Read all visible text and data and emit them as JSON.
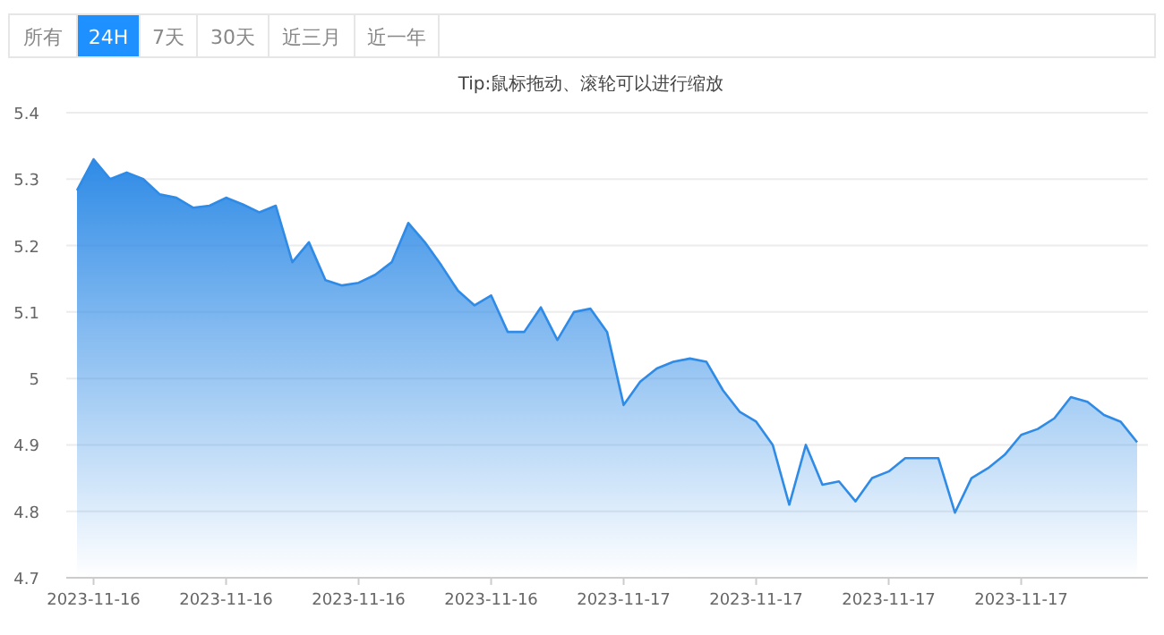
{
  "chart_data": {
    "type": "area",
    "annotations": [
      "所有",
      "24H",
      "7天",
      "30天",
      "近三月",
      "近一年",
      "Tip:鼠标拖动、滚轮可以进行缩放"
    ],
    "categories": [
      null,
      "2023-11-16",
      null,
      null,
      null,
      null,
      null,
      null,
      null,
      "2023-11-16",
      null,
      null,
      null,
      null,
      null,
      null,
      null,
      "2023-11-16",
      null,
      null,
      null,
      null,
      null,
      null,
      null,
      "2023-11-16",
      null,
      null,
      null,
      null,
      null,
      null,
      null,
      "2023-11-17",
      null,
      null,
      null,
      null,
      null,
      null,
      null,
      "2023-11-17",
      null,
      null,
      null,
      null,
      null,
      null,
      null,
      "2023-11-17",
      null,
      null,
      null,
      null,
      null,
      null,
      null,
      "2023-11-17",
      null,
      null,
      null,
      null,
      null,
      null,
      null
    ],
    "series": [
      {
        "color": "#2f8be6",
        "values": [
          5.283,
          5.33,
          5.3,
          5.31,
          5.3,
          5.277,
          5.272,
          5.257,
          5.26,
          5.272,
          5.262,
          5.25,
          5.26,
          5.175,
          5.205,
          5.148,
          5.14,
          5.144,
          5.156,
          5.175,
          5.234,
          5.205,
          5.17,
          5.132,
          5.11,
          5.125,
          5.07,
          5.07,
          5.107,
          5.058,
          5.1,
          5.105,
          5.07,
          4.96,
          4.995,
          5.015,
          5.025,
          5.03,
          5.025,
          4.982,
          4.95,
          4.935,
          4.9,
          4.81,
          4.9,
          4.84,
          4.845,
          4.815,
          4.85,
          4.86,
          4.88,
          4.88,
          4.88,
          4.798,
          4.85,
          4.865,
          4.885,
          4.915,
          4.924,
          4.94,
          4.972,
          4.965,
          4.945,
          4.935,
          4.904
        ]
      }
    ],
    "ylim": [
      4.7,
      5.4
    ],
    "yticks": [
      4.7,
      4.8,
      4.9,
      5,
      5.1,
      5.2,
      5.3,
      5.4
    ],
    "grid": "y"
  }
}
